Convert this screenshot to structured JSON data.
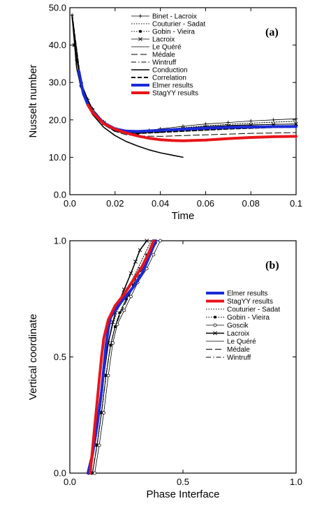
{
  "chart_data": [
    {
      "type": "line",
      "panel_label": "(a)",
      "xlabel": "Time",
      "ylabel": "Nusselt number",
      "xlim": [
        0,
        0.1
      ],
      "ylim": [
        0,
        50
      ],
      "xticks": [
        "0.0",
        "0.02",
        "0.04",
        "0.06",
        "0.08",
        "0.1"
      ],
      "yticks": [
        "0.0",
        "10.0",
        "20.0",
        "30.0",
        "40.0",
        "50.0"
      ],
      "legend_position": "top-right",
      "series": [
        {
          "name": "Binet - Lacroix",
          "color": "#000000",
          "style": "thin",
          "marker": "plus",
          "x": [
            0.001,
            0.003,
            0.005,
            0.008,
            0.01,
            0.015,
            0.02,
            0.025,
            0.03,
            0.035,
            0.04,
            0.05,
            0.06,
            0.07,
            0.08,
            0.09,
            0.1
          ],
          "y": [
            48,
            36,
            30,
            25.5,
            23,
            19.5,
            17.5,
            16.8,
            16.8,
            17.2,
            17.6,
            18.3,
            18.9,
            19.3,
            19.7,
            20,
            20.3
          ]
        },
        {
          "name": "Couturier - Sadat",
          "color": "#000000",
          "style": "dotted",
          "marker": "none",
          "x": [
            0.001,
            0.005,
            0.01,
            0.015,
            0.02,
            0.025,
            0.03,
            0.04,
            0.05,
            0.06,
            0.07,
            0.08,
            0.09,
            0.1
          ],
          "y": [
            47,
            29,
            22.5,
            19.3,
            17.6,
            17,
            16.9,
            17.4,
            17.9,
            18.4,
            18.8,
            19.1,
            19.4,
            19.6
          ]
        },
        {
          "name": "Gobin - Vieira",
          "color": "#000000",
          "style": "dotted",
          "marker": "square",
          "x": [
            0.002,
            0.005,
            0.01,
            0.015,
            0.02,
            0.025,
            0.03,
            0.04,
            0.05,
            0.06,
            0.07,
            0.08,
            0.09,
            0.1
          ],
          "y": [
            40,
            29,
            22,
            19,
            17.3,
            16.6,
            16.4,
            16.9,
            17.4,
            17.8,
            18.1,
            18.3,
            18.4,
            18.5
          ]
        },
        {
          "name": "Lacroix",
          "color": "#000000",
          "style": "thin",
          "marker": "cross",
          "x": [
            0.002,
            0.005,
            0.01,
            0.015,
            0.02,
            0.025,
            0.03,
            0.04,
            0.05,
            0.06,
            0.07,
            0.08,
            0.09,
            0.1
          ],
          "y": [
            40,
            29.5,
            22.5,
            19.2,
            17.5,
            16.8,
            16.7,
            17.2,
            17.7,
            18.1,
            18.4,
            18.6,
            18.8,
            18.9
          ]
        },
        {
          "name": "Le Quéré",
          "color": "#000000",
          "style": "thin",
          "marker": "none",
          "x": [
            0.001,
            0.005,
            0.01,
            0.015,
            0.02,
            0.025,
            0.03,
            0.04,
            0.05,
            0.06,
            0.07,
            0.08,
            0.09,
            0.1
          ],
          "y": [
            48,
            29.5,
            22.6,
            19.3,
            17.5,
            16.9,
            16.8,
            17.3,
            17.8,
            18.2,
            18.5,
            18.7,
            18.8,
            18.9
          ]
        },
        {
          "name": "Médale",
          "color": "#000000",
          "style": "longdash",
          "marker": "none",
          "x": [
            0.001,
            0.005,
            0.01,
            0.015,
            0.02,
            0.025,
            0.03,
            0.04,
            0.05,
            0.06,
            0.07,
            0.08,
            0.09,
            0.1
          ],
          "y": [
            48,
            29,
            22,
            18.7,
            16.9,
            16,
            15.7,
            15.6,
            15.8,
            16,
            16.2,
            16.4,
            16.5,
            16.6
          ]
        },
        {
          "name": "Wintruff",
          "color": "#000000",
          "style": "dashdot",
          "marker": "none",
          "x": [
            0.001,
            0.005,
            0.01,
            0.015,
            0.02,
            0.025,
            0.03,
            0.04,
            0.05,
            0.06,
            0.07,
            0.08,
            0.09,
            0.1
          ],
          "y": [
            48,
            29.2,
            22.3,
            19,
            17.2,
            16.5,
            16.4,
            16.8,
            17.3,
            17.7,
            18,
            18.2,
            18.4,
            18.5
          ]
        },
        {
          "name": "Conduction",
          "color": "#000000",
          "style": "solid",
          "marker": "none",
          "x": [
            0.001,
            0.003,
            0.005,
            0.01,
            0.015,
            0.02,
            0.025,
            0.03,
            0.035,
            0.04,
            0.045,
            0.05
          ],
          "y": [
            48,
            34,
            28.5,
            21.5,
            18,
            15.8,
            14.2,
            13,
            12,
            11.2,
            10.6,
            10
          ]
        },
        {
          "name": "Correlation",
          "color": "#000000",
          "style": "dashed",
          "marker": "none",
          "x": [
            0.001,
            0.005,
            0.01,
            0.015,
            0.02,
            0.025,
            0.03,
            0.04,
            0.05,
            0.06,
            0.07,
            0.08,
            0.09,
            0.1
          ],
          "y": [
            48,
            29,
            22,
            18.8,
            17,
            16.5,
            16.4,
            16.7,
            17,
            17.3,
            17.6,
            17.8,
            18,
            18.1
          ]
        },
        {
          "name": "Elmer results",
          "color": "#1a2ad8",
          "style": "thick",
          "marker": "none",
          "x": [
            0.004,
            0.006,
            0.008,
            0.01,
            0.015,
            0.02,
            0.025,
            0.03,
            0.04,
            0.05,
            0.06,
            0.07,
            0.08,
            0.09,
            0.1
          ],
          "y": [
            33,
            27,
            24,
            22.2,
            19.2,
            17.6,
            17,
            16.9,
            17.2,
            17.5,
            17.8,
            18,
            18.1,
            18.2,
            18.2
          ]
        },
        {
          "name": "StagYY results",
          "color": "#e8141a",
          "style": "thick",
          "marker": "none",
          "x": [
            0.008,
            0.01,
            0.015,
            0.02,
            0.025,
            0.03,
            0.035,
            0.04,
            0.045,
            0.05,
            0.06,
            0.07,
            0.08,
            0.09,
            0.1
          ],
          "y": [
            24,
            22,
            19,
            17.5,
            16.5,
            15.7,
            15.1,
            14.7,
            14.5,
            14.4,
            14.6,
            15,
            15.3,
            15.5,
            15.6
          ]
        }
      ]
    },
    {
      "type": "line",
      "panel_label": "(b)",
      "xlabel": "Phase Interface",
      "ylabel": "Vertical coordinate",
      "xlim": [
        0,
        1
      ],
      "ylim": [
        0,
        1
      ],
      "xticks": [
        "0.0",
        "0.5",
        "1.0"
      ],
      "yticks": [
        "0.0",
        "0.5",
        "1.0"
      ],
      "legend_position": "right",
      "series": [
        {
          "name": "Elmer results",
          "color": "#1a2ad8",
          "style": "thick",
          "marker": "none",
          "x": [
            0.08,
            0.1,
            0.12,
            0.14,
            0.15,
            0.16,
            0.17,
            0.18,
            0.2,
            0.23,
            0.28,
            0.32,
            0.35,
            0.38
          ],
          "y": [
            0,
            0.08,
            0.2,
            0.35,
            0.45,
            0.55,
            0.62,
            0.67,
            0.7,
            0.74,
            0.8,
            0.86,
            0.93,
            1
          ]
        },
        {
          "name": "StagYY results",
          "color": "#e8141a",
          "style": "thick",
          "marker": "none",
          "x": [
            0.09,
            0.1,
            0.11,
            0.12,
            0.13,
            0.14,
            0.15,
            0.17,
            0.2,
            0.24,
            0.28,
            0.32,
            0.35,
            0.37
          ],
          "y": [
            0,
            0.1,
            0.2,
            0.3,
            0.4,
            0.5,
            0.58,
            0.66,
            0.72,
            0.77,
            0.83,
            0.89,
            0.95,
            1
          ]
        },
        {
          "name": "Couturier - Sadat",
          "color": "#000000",
          "style": "dotted",
          "marker": "none",
          "x": [
            0.09,
            0.11,
            0.13,
            0.15,
            0.17,
            0.19,
            0.21,
            0.24,
            0.27,
            0.3,
            0.33,
            0.36
          ],
          "y": [
            0,
            0.12,
            0.26,
            0.42,
            0.56,
            0.64,
            0.7,
            0.76,
            0.82,
            0.88,
            0.94,
            1
          ]
        },
        {
          "name": "Gobin - Vieira",
          "color": "#000000",
          "style": "dotted",
          "marker": "square",
          "x": [
            0.1,
            0.12,
            0.14,
            0.16,
            0.18,
            0.2,
            0.22,
            0.25,
            0.28,
            0.31,
            0.34,
            0.37
          ],
          "y": [
            0,
            0.12,
            0.26,
            0.42,
            0.55,
            0.63,
            0.69,
            0.75,
            0.81,
            0.88,
            0.94,
            1
          ]
        },
        {
          "name": "Goscik",
          "color": "#000000",
          "style": "thin",
          "marker": "circle",
          "x": [
            0.11,
            0.13,
            0.15,
            0.17,
            0.19,
            0.21,
            0.24,
            0.27,
            0.3,
            0.34,
            0.37,
            0.4
          ],
          "y": [
            0,
            0.12,
            0.26,
            0.42,
            0.56,
            0.64,
            0.7,
            0.76,
            0.82,
            0.88,
            0.94,
            1
          ]
        },
        {
          "name": "Lacroix",
          "color": "#000000",
          "style": "solid",
          "marker": "cross",
          "x": [
            0.09,
            0.11,
            0.13,
            0.15,
            0.17,
            0.19,
            0.21,
            0.24,
            0.27,
            0.29,
            0.31,
            0.34
          ],
          "y": [
            0,
            0.12,
            0.26,
            0.42,
            0.56,
            0.65,
            0.72,
            0.79,
            0.86,
            0.91,
            0.96,
            1
          ]
        },
        {
          "name": "Le Quéré",
          "color": "#000000",
          "style": "thin",
          "marker": "none",
          "x": [
            0.1,
            0.12,
            0.14,
            0.16,
            0.18,
            0.2,
            0.22,
            0.25,
            0.29,
            0.32,
            0.35,
            0.38
          ],
          "y": [
            0,
            0.12,
            0.26,
            0.42,
            0.55,
            0.63,
            0.69,
            0.75,
            0.81,
            0.87,
            0.94,
            1
          ]
        },
        {
          "name": "Médale",
          "color": "#000000",
          "style": "longdash",
          "marker": "none",
          "x": [
            0.1,
            0.12,
            0.14,
            0.16,
            0.18,
            0.2,
            0.23,
            0.26,
            0.29,
            0.32,
            0.35,
            0.39
          ],
          "y": [
            0,
            0.12,
            0.26,
            0.42,
            0.55,
            0.63,
            0.7,
            0.76,
            0.82,
            0.88,
            0.94,
            1
          ]
        },
        {
          "name": "Wintruff",
          "color": "#000000",
          "style": "dashdot",
          "marker": "none",
          "x": [
            0.1,
            0.12,
            0.14,
            0.16,
            0.18,
            0.2,
            0.22,
            0.25,
            0.28,
            0.31,
            0.34,
            0.37
          ],
          "y": [
            0,
            0.12,
            0.26,
            0.42,
            0.55,
            0.63,
            0.69,
            0.75,
            0.81,
            0.87,
            0.94,
            1
          ]
        }
      ]
    }
  ]
}
